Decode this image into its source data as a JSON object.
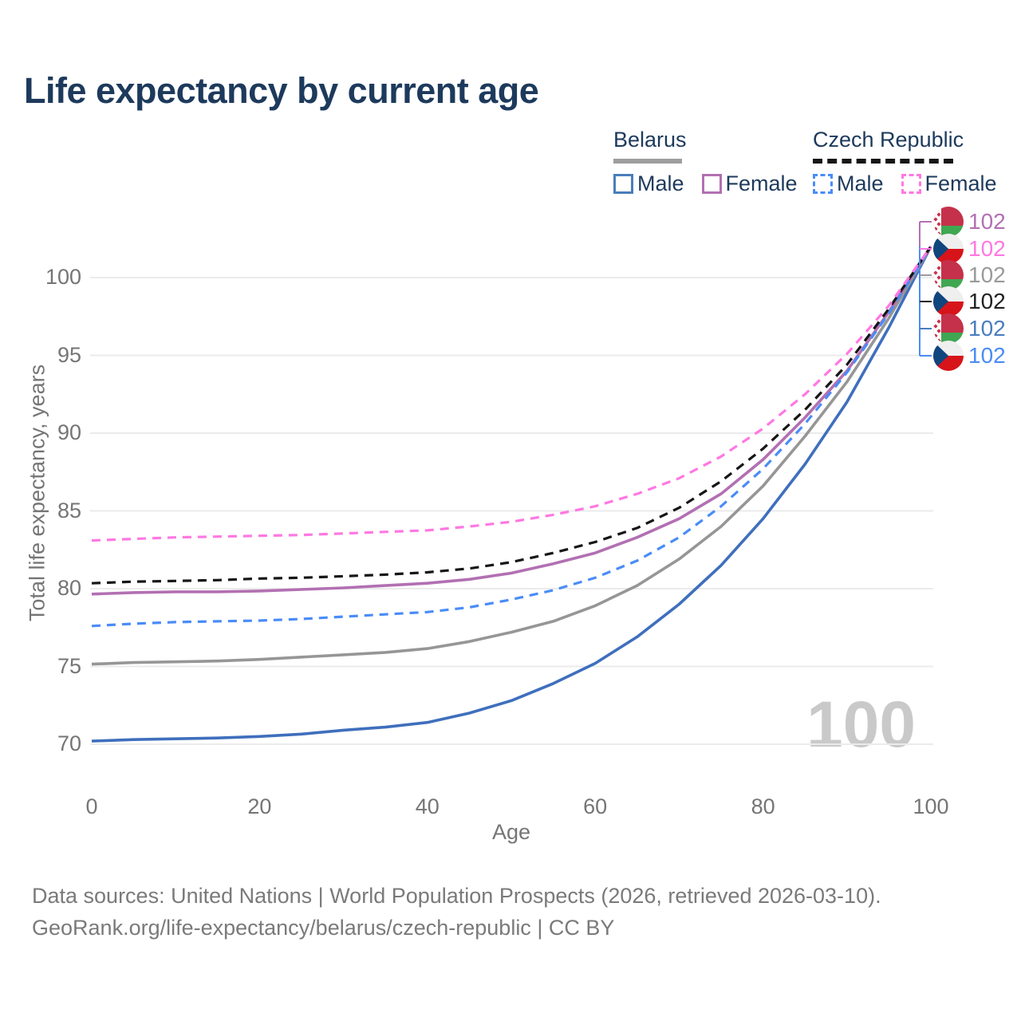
{
  "title": "Life expectancy by current age",
  "legend": {
    "belarus": {
      "label": "Belarus",
      "male_label": "Male",
      "female_label": "Female"
    },
    "czech": {
      "label": "Czech Republic",
      "male_label": "Male",
      "female_label": "Female"
    }
  },
  "colors": {
    "belarus_male": "#3f6fbd",
    "belarus_female": "#b270b2",
    "belarus_both": "#969696",
    "czech_male": "#4a8cf7",
    "czech_both": "#161616",
    "czech_female": "#ff78e2",
    "gridline": "#ebebeb",
    "title_text": "#1d3a5c",
    "axis_text": "#757575",
    "watermark_text": "#c9c9c9"
  },
  "chart_data": {
    "type": "line",
    "title": "Life expectancy by current age",
    "xlabel": "Age",
    "ylabel": "Total life expectancy, years",
    "x_ticks": [
      0,
      20,
      40,
      60,
      80,
      100
    ],
    "y_ticks": [
      70,
      75,
      80,
      85,
      90,
      95,
      100
    ],
    "xlim": [
      0,
      100
    ],
    "ylim": [
      70,
      102
    ],
    "grid": "horizontal-only",
    "legend_position": "top-right",
    "x": [
      0,
      5,
      10,
      15,
      20,
      25,
      30,
      35,
      40,
      45,
      50,
      55,
      60,
      65,
      70,
      75,
      80,
      85,
      90,
      95,
      100
    ],
    "series": [
      {
        "name": "Belarus Male",
        "country": "belarus",
        "sex": "male",
        "style": "solid",
        "color": "#3f6fbd",
        "values": [
          70.2,
          70.3,
          70.35,
          70.4,
          70.5,
          70.65,
          70.9,
          71.1,
          71.4,
          72.0,
          72.8,
          73.9,
          75.2,
          76.9,
          79.0,
          81.5,
          84.5,
          88.0,
          92.0,
          96.8,
          102
        ],
        "end_label": "102"
      },
      {
        "name": "Belarus Both",
        "country": "belarus",
        "sex": "both",
        "style": "solid",
        "color": "#969696",
        "values": [
          75.15,
          75.25,
          75.3,
          75.35,
          75.45,
          75.6,
          75.75,
          75.9,
          76.15,
          76.6,
          77.2,
          77.9,
          78.9,
          80.2,
          81.9,
          84.0,
          86.6,
          89.8,
          93.3,
          97.4,
          102
        ],
        "end_label": "102"
      },
      {
        "name": "Belarus Female",
        "country": "belarus",
        "sex": "female",
        "style": "solid",
        "color": "#b270b2",
        "values": [
          79.65,
          79.75,
          79.8,
          79.8,
          79.85,
          79.95,
          80.05,
          80.2,
          80.35,
          80.6,
          81.0,
          81.6,
          82.3,
          83.3,
          84.5,
          86.1,
          88.3,
          91.0,
          94.0,
          97.8,
          102
        ],
        "end_label": "102"
      },
      {
        "name": "Czech Republic Male",
        "country": "czech",
        "sex": "male",
        "style": "dashed",
        "color": "#4a8cf7",
        "values": [
          77.6,
          77.75,
          77.85,
          77.9,
          77.95,
          78.05,
          78.2,
          78.35,
          78.5,
          78.8,
          79.3,
          79.9,
          80.7,
          81.8,
          83.3,
          85.3,
          87.7,
          90.6,
          93.9,
          97.7,
          102
        ],
        "end_label": "102"
      },
      {
        "name": "Czech Republic Both",
        "country": "czech",
        "sex": "both",
        "style": "dashed",
        "color": "#161616",
        "values": [
          80.35,
          80.45,
          80.5,
          80.55,
          80.65,
          80.7,
          80.8,
          80.9,
          81.05,
          81.3,
          81.7,
          82.3,
          83.0,
          83.9,
          85.2,
          86.9,
          89.0,
          91.5,
          94.4,
          98.0,
          102
        ],
        "end_label": "102"
      },
      {
        "name": "Czech Republic Female",
        "country": "czech",
        "sex": "female",
        "style": "dashed",
        "color": "#ff78e2",
        "values": [
          83.1,
          83.2,
          83.3,
          83.35,
          83.4,
          83.45,
          83.55,
          83.65,
          83.75,
          84.0,
          84.3,
          84.75,
          85.3,
          86.1,
          87.1,
          88.5,
          90.3,
          92.5,
          95.1,
          98.2,
          102
        ],
        "end_label": "102"
      }
    ]
  },
  "end_labels": [
    {
      "flag": "belarus",
      "value": "102",
      "color": "#b270b2"
    },
    {
      "flag": "czech",
      "value": "102",
      "color": "#ff78e2"
    },
    {
      "flag": "belarus",
      "value": "102",
      "color": "#9a9a9a"
    },
    {
      "flag": "czech",
      "value": "102",
      "color": "#222222"
    },
    {
      "flag": "belarus",
      "value": "102",
      "color": "#4a7dc0"
    },
    {
      "flag": "czech",
      "value": "102",
      "color": "#4a8cf7"
    }
  ],
  "watermark": "100",
  "footer": {
    "line1": "Data sources: United Nations | World Population Prospects (2026, retrieved 2026-03-10).",
    "line2": "GeoRank.org/life-expectancy/belarus/czech-republic | CC BY"
  }
}
